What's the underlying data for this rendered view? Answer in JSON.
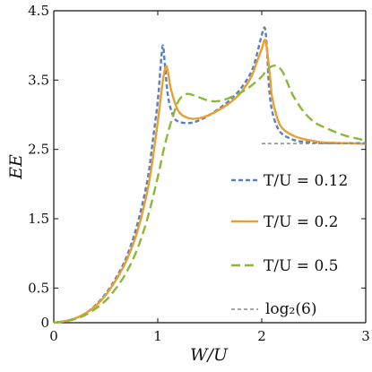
{
  "chart_data": {
    "type": "line",
    "title": "",
    "xlabel": "W/U",
    "ylabel": "EE",
    "xlim": [
      0,
      3
    ],
    "ylim": [
      0,
      4.5
    ],
    "x_ticks": [
      0,
      1,
      2,
      3
    ],
    "x_tick_labels": [
      "0",
      "1",
      "2",
      "3"
    ],
    "y_ticks": [
      0,
      0.5,
      1.5,
      2.5,
      3.5,
      4.5
    ],
    "y_tick_labels": [
      "0",
      "0.5",
      "1.5",
      "2.5",
      "3.5",
      "4.5"
    ],
    "grid": false,
    "legend_position": "right",
    "series": [
      {
        "name": "T/U = 0.12",
        "color": "#5b7fbf",
        "style": "short-dash",
        "x": [
          0,
          0.1,
          0.2,
          0.3,
          0.4,
          0.5,
          0.6,
          0.7,
          0.8,
          0.9,
          0.95,
          1.0,
          1.03,
          1.05,
          1.07,
          1.1,
          1.15,
          1.2,
          1.3,
          1.4,
          1.5,
          1.6,
          1.7,
          1.8,
          1.9,
          1.95,
          2.0,
          2.03,
          2.05,
          2.07,
          2.1,
          2.15,
          2.2,
          2.3,
          2.4,
          2.5,
          2.6,
          2.8,
          3.0
        ],
        "y": [
          0,
          0.02,
          0.06,
          0.13,
          0.25,
          0.42,
          0.65,
          0.95,
          1.4,
          2.05,
          2.6,
          3.2,
          3.75,
          4.0,
          3.7,
          3.25,
          2.98,
          2.9,
          2.88,
          2.92,
          3.0,
          3.1,
          3.22,
          3.38,
          3.62,
          3.85,
          4.15,
          4.25,
          3.95,
          3.4,
          3.05,
          2.82,
          2.72,
          2.64,
          2.61,
          2.6,
          2.59,
          2.59,
          2.59
        ]
      },
      {
        "name": "T/U = 0.2",
        "color": "#e8a030",
        "style": "solid",
        "x": [
          0,
          0.1,
          0.2,
          0.3,
          0.4,
          0.5,
          0.6,
          0.7,
          0.8,
          0.9,
          0.95,
          1.0,
          1.05,
          1.08,
          1.1,
          1.13,
          1.2,
          1.3,
          1.4,
          1.5,
          1.6,
          1.7,
          1.8,
          1.9,
          1.95,
          2.0,
          2.03,
          2.05,
          2.08,
          2.1,
          2.15,
          2.2,
          2.3,
          2.4,
          2.5,
          2.6,
          2.8,
          3.0
        ],
        "y": [
          0,
          0.02,
          0.06,
          0.13,
          0.24,
          0.4,
          0.62,
          0.9,
          1.3,
          1.9,
          2.35,
          2.9,
          3.5,
          3.7,
          3.6,
          3.35,
          3.05,
          2.95,
          2.95,
          3.0,
          3.08,
          3.18,
          3.32,
          3.55,
          3.75,
          3.95,
          4.08,
          3.95,
          3.55,
          3.25,
          2.95,
          2.8,
          2.7,
          2.65,
          2.62,
          2.6,
          2.59,
          2.58
        ]
      },
      {
        "name": "T/U = 0.5",
        "color": "#8cb83a",
        "style": "long-dash",
        "x": [
          0,
          0.1,
          0.2,
          0.3,
          0.4,
          0.5,
          0.6,
          0.7,
          0.8,
          0.9,
          1.0,
          1.05,
          1.1,
          1.15,
          1.2,
          1.25,
          1.3,
          1.4,
          1.5,
          1.6,
          1.7,
          1.8,
          1.9,
          2.0,
          2.05,
          2.1,
          2.15,
          2.2,
          2.25,
          2.3,
          2.4,
          2.5,
          2.6,
          2.8,
          3.0
        ],
        "y": [
          0,
          0.02,
          0.05,
          0.11,
          0.2,
          0.32,
          0.5,
          0.73,
          1.05,
          1.5,
          2.1,
          2.45,
          2.75,
          3.0,
          3.2,
          3.28,
          3.3,
          3.25,
          3.2,
          3.2,
          3.25,
          3.32,
          3.42,
          3.55,
          3.65,
          3.7,
          3.7,
          3.62,
          3.45,
          3.28,
          3.05,
          2.9,
          2.82,
          2.7,
          2.63
        ]
      },
      {
        "name": "log₂(6)",
        "color": "#8a8a8a",
        "style": "dashed",
        "x": [
          2.0,
          3.0
        ],
        "y": [
          2.585,
          2.585
        ]
      }
    ]
  }
}
